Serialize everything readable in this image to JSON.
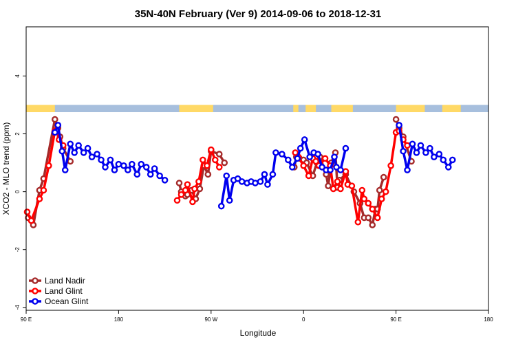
{
  "chart_data": {
    "type": "line",
    "title": "35N-40N February (Ver 9)   2014-09-06 to 2018-12-31",
    "xlabel": "Longitude",
    "ylabel": "XCO2 - MLO trend (ppm)",
    "xlim": [
      90,
      450
    ],
    "ylim": [
      -4.1,
      5.7
    ],
    "x_ticks": [
      {
        "value": 90,
        "label": "90 E"
      },
      {
        "value": 180,
        "label": "180"
      },
      {
        "value": 270,
        "label": "90 W"
      },
      {
        "value": 360,
        "label": "0"
      },
      {
        "value": 450,
        "label": "90 E"
      },
      {
        "value": 540,
        "label": "180"
      }
    ],
    "y_ticks": [
      {
        "value": -4,
        "label": "-4"
      },
      {
        "value": -2,
        "label": "-2"
      },
      {
        "value": 0,
        "label": "0"
      },
      {
        "value": 2,
        "label": "2"
      },
      {
        "value": 4,
        "label": "4"
      }
    ],
    "x_display": {
      "min": 90,
      "max": 540
    },
    "legend_position": "bottom-left",
    "grid": false,
    "land_band": {
      "y_range": [
        2.75,
        3.0
      ],
      "land_color": "#FFD966",
      "ocean_color": "#A7BFDD",
      "land_segments": [
        [
          90,
          118
        ],
        [
          239,
          272
        ],
        [
          350,
          355
        ],
        [
          362,
          372
        ],
        [
          387,
          408
        ],
        [
          450,
          478
        ],
        [
          495,
          513
        ]
      ]
    },
    "series": [
      {
        "name": "Land Nadir",
        "color": "#A52A2A",
        "segments": [
          {
            "x": [
              92,
              97,
              103,
              107,
              118,
              121,
              123,
              126,
              133
            ],
            "y": [
              -0.9,
              -1.15,
              0.05,
              0.45,
              2.5,
              2.2,
              1.9,
              1.5,
              1.05
            ]
          },
          {
            "x": [
              239,
              241,
              245,
              247,
              251,
              255,
              259,
              263,
              267,
              270,
              278,
              283
            ],
            "y": [
              0.3,
              0.0,
              -0.15,
              -0.1,
              0.05,
              -0.25,
              0.1,
              0.9,
              0.6,
              1.4,
              1.3,
              1.0
            ]
          },
          {
            "x": [
              351,
              353,
              356,
              360,
              363,
              369,
              373,
              376,
              382,
              384,
              387,
              391,
              393,
              395,
              401,
              409,
              415,
              419,
              423,
              427,
              430,
              432,
              434,
              438
            ],
            "y": [
              0.85,
              1.2,
              1.15,
              1.1,
              1.0,
              0.55,
              1.0,
              1.2,
              0.6,
              0.2,
              1.0,
              1.35,
              0.15,
              0.4,
              0.6,
              0.0,
              -0.4,
              -0.9,
              -0.9,
              -1.15,
              -0.6,
              -0.6,
              0.05,
              0.5
            ]
          },
          {
            "x": [
              450,
              453,
              457,
              465
            ],
            "y": [
              2.5,
              2.2,
              1.9,
              1.05
            ]
          }
        ]
      },
      {
        "name": "Land Glint",
        "color": "#FF0000",
        "segments": [
          {
            "x": [
              91,
              95,
              103,
              107,
              112,
              118,
              120,
              122,
              126
            ],
            "y": [
              -0.7,
              -1.0,
              -0.25,
              0.05,
              0.9,
              2.1,
              2.1,
              1.8,
              1.6
            ]
          },
          {
            "x": [
              237,
              241,
              245,
              247,
              252,
              254,
              258,
              262,
              266,
              270,
              274,
              278
            ],
            "y": [
              -0.3,
              -0.1,
              0.05,
              0.25,
              -0.35,
              0.1,
              0.35,
              1.1,
              0.9,
              1.45,
              1.1,
              0.85
            ]
          },
          {
            "x": [
              352,
              355,
              360,
              365,
              369,
              372,
              375,
              381,
              386,
              389,
              393,
              396,
              401,
              403,
              407,
              413,
              417,
              419,
              423,
              427,
              432,
              436,
              440,
              445,
              450,
              453
            ],
            "y": [
              1.35,
              1.2,
              0.9,
              0.55,
              1.15,
              1.05,
              0.9,
              1.15,
              0.9,
              0.1,
              0.35,
              0.1,
              0.7,
              0.25,
              0.2,
              -1.05,
              0.05,
              -0.25,
              -0.4,
              -0.6,
              -0.9,
              -0.25,
              0.0,
              0.9,
              2.05,
              2.1
            ]
          },
          {
            "x": [
              457,
              461
            ],
            "y": [
              1.8,
              1.6
            ]
          }
        ]
      },
      {
        "name": "Ocean Glint",
        "color": "#0000EE",
        "segments": [
          {
            "x": [
              118,
              121,
              125,
              128,
              133,
              137,
              141,
              146,
              150,
              154,
              159,
              163,
              167,
              172,
              176,
              180,
              185,
              189,
              193,
              198,
              202,
              207,
              211,
              215,
              220,
              225
            ],
            "y": [
              2.05,
              2.3,
              1.4,
              0.75,
              1.65,
              1.35,
              1.6,
              1.35,
              1.5,
              1.2,
              1.3,
              1.1,
              0.85,
              1.1,
              0.75,
              0.95,
              0.9,
              0.75,
              0.95,
              0.6,
              0.95,
              0.85,
              0.6,
              0.8,
              0.55,
              0.4
            ]
          },
          {
            "x": [
              280,
              285,
              288,
              292,
              296,
              300,
              305,
              309,
              313,
              318,
              322,
              325,
              330,
              333,
              339,
              345,
              349,
              354,
              357,
              361,
              366,
              370,
              374,
              378,
              382,
              386,
              390,
              392,
              396,
              401
            ],
            "y": [
              -0.5,
              0.55,
              -0.3,
              0.4,
              0.45,
              0.35,
              0.3,
              0.35,
              0.3,
              0.35,
              0.6,
              0.25,
              0.6,
              1.35,
              1.3,
              1.1,
              0.85,
              1.15,
              1.5,
              1.8,
              1.2,
              1.35,
              1.3,
              0.85,
              0.75,
              0.75,
              1.2,
              0.85,
              0.75,
              1.5
            ]
          },
          {
            "x": [
              453,
              457,
              461,
              466,
              470,
              474,
              479,
              483,
              487,
              492,
              496,
              501,
              505
            ],
            "y": [
              2.3,
              1.4,
              0.75,
              1.65,
              1.35,
              1.6,
              1.35,
              1.5,
              1.2,
              1.3,
              1.1,
              0.85,
              1.1
            ]
          }
        ]
      }
    ]
  }
}
